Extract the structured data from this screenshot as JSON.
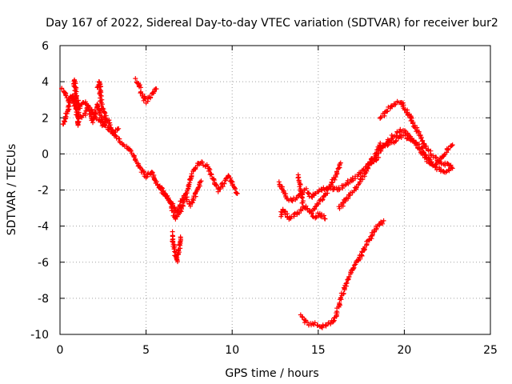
{
  "chart_data": {
    "type": "scatter",
    "title": "Day 167 of 2022, Sidereal Day-to-day VTEC variation (SDTVAR) for receiver bur2",
    "xlabel": "GPS time / hours",
    "ylabel": "SDTVAR / TECUs",
    "xlim": [
      0,
      25
    ],
    "ylim": [
      -10,
      6
    ],
    "xticks": [
      0,
      5,
      10,
      15,
      20,
      25
    ],
    "yticks": [
      -10,
      -8,
      -6,
      -4,
      -2,
      0,
      2,
      4,
      6
    ],
    "grid": true,
    "marker": "plus",
    "color": "#ff0000",
    "tracks": [
      {
        "x": [
          0.1,
          0.3,
          0.6,
          0.9,
          1.2,
          1.5,
          1.8,
          2.1,
          2.4,
          2.7,
          3.0,
          3.3,
          3.6,
          3.9,
          4.2,
          4.5,
          4.8,
          5.0
        ],
        "y": [
          3.6,
          3.3,
          2.9,
          3.1,
          2.6,
          2.9,
          2.4,
          2.0,
          1.8,
          1.5,
          1.2,
          0.9,
          0.6,
          0.4,
          0.0,
          -0.5,
          -1.0,
          -1.3
        ]
      },
      {
        "x": [
          0.2,
          0.4,
          0.7,
          1.0,
          1.3,
          1.6,
          1.9,
          2.2,
          2.5,
          2.8,
          3.1,
          3.4
        ],
        "y": [
          1.6,
          2.3,
          3.3,
          2.2,
          2.0,
          2.5,
          1.8,
          2.8,
          1.6,
          1.9,
          1.1,
          1.4
        ]
      },
      {
        "x": [
          0.8,
          0.85,
          0.9,
          0.95,
          1.0,
          1.05,
          1.1
        ],
        "y": [
          3.8,
          4.1,
          3.5,
          3.0,
          2.5,
          1.6,
          2.3
        ]
      },
      {
        "x": [
          2.2,
          2.3,
          2.35,
          2.4,
          2.5,
          2.6,
          2.7
        ],
        "y": [
          3.6,
          4.0,
          3.2,
          2.8,
          2.4,
          2.2,
          1.9
        ]
      },
      {
        "x": [
          4.4,
          4.6,
          4.8,
          5.0,
          5.2,
          5.4,
          5.6
        ],
        "y": [
          4.1,
          3.8,
          3.2,
          2.9,
          3.1,
          3.4,
          3.6
        ]
      },
      {
        "x": [
          5.0,
          5.3,
          5.6,
          5.9,
          6.2,
          6.5,
          6.8,
          7.1,
          7.4,
          7.7,
          8.0,
          8.3,
          8.6,
          8.9,
          9.2,
          9.5,
          9.8,
          10.1,
          10.3
        ],
        "y": [
          -1.3,
          -1.0,
          -1.6,
          -2.0,
          -2.4,
          -2.8,
          -3.2,
          -2.6,
          -2.0,
          -1.0,
          -0.6,
          -0.5,
          -0.7,
          -1.4,
          -2.0,
          -1.6,
          -1.2,
          -1.9,
          -2.2
        ]
      },
      {
        "x": [
          5.8,
          6.1,
          6.4,
          6.7,
          7.0,
          7.3,
          7.6,
          7.9,
          8.2
        ],
        "y": [
          -1.8,
          -2.3,
          -2.6,
          -3.6,
          -3.2,
          -2.4,
          -2.8,
          -2.2,
          -1.5
        ]
      },
      {
        "x": [
          6.5,
          6.6,
          6.7,
          6.8,
          6.9,
          7.0
        ],
        "y": [
          -4.4,
          -5.0,
          -5.6,
          -5.9,
          -5.4,
          -4.6
        ]
      },
      {
        "x": [
          12.7,
          12.9,
          13.1,
          13.4,
          13.7,
          14.0,
          14.3,
          14.6,
          14.9,
          15.2,
          15.5,
          15.8,
          16.1,
          16.4,
          16.7,
          17.0,
          17.3,
          17.6,
          17.9,
          18.2,
          18.5
        ],
        "y": [
          -1.6,
          -1.9,
          -2.3,
          -2.6,
          -2.4,
          -2.2,
          -2.0,
          -2.4,
          -2.1,
          -2.0,
          -1.9,
          -1.9,
          -2.0,
          -1.8,
          -1.6,
          -1.4,
          -1.2,
          -0.9,
          -0.6,
          -0.4,
          -0.2
        ]
      },
      {
        "x": [
          12.8,
          13.0,
          13.3,
          13.6,
          13.9,
          14.2,
          14.5,
          14.8,
          15.1,
          15.4
        ],
        "y": [
          -3.4,
          -3.1,
          -3.6,
          -3.4,
          -3.2,
          -2.9,
          -3.2,
          -3.5,
          -3.3,
          -3.6
        ]
      },
      {
        "x": [
          14.6,
          14.9,
          15.2,
          15.5,
          15.8,
          16.1,
          16.3
        ],
        "y": [
          -3.2,
          -2.8,
          -2.5,
          -2.1,
          -1.6,
          -1.0,
          -0.5
        ]
      },
      {
        "x": [
          16.2,
          16.5,
          16.8,
          17.1,
          17.4,
          17.7,
          18.0,
          18.3,
          18.6
        ],
        "y": [
          -3.0,
          -2.7,
          -2.3,
          -2.0,
          -1.6,
          -1.1,
          -0.6,
          -0.3,
          0.6
        ]
      },
      {
        "x": [
          13.8,
          13.9,
          14.0,
          14.1
        ],
        "y": [
          -1.2,
          -1.5,
          -2.0,
          -2.7
        ]
      },
      {
        "x": [
          14.0,
          14.3,
          14.6,
          14.9,
          15.2,
          15.5,
          15.8,
          16.0,
          16.2,
          16.4,
          16.6,
          16.8,
          17.0,
          17.2,
          17.4,
          17.6,
          17.8,
          18.0,
          18.2,
          18.4,
          18.6,
          18.8
        ],
        "y": [
          -9.0,
          -9.3,
          -9.5,
          -9.4,
          -9.6,
          -9.5,
          -9.3,
          -9.0,
          -8.4,
          -7.8,
          -7.3,
          -6.8,
          -6.4,
          -6.0,
          -5.8,
          -5.4,
          -5.0,
          -4.7,
          -4.4,
          -4.1,
          -3.9,
          -3.7
        ]
      },
      {
        "x": [
          18.6,
          18.9,
          19.2,
          19.5,
          19.8,
          20.1,
          20.4,
          20.7,
          21.0,
          21.3,
          21.6,
          21.9,
          22.2,
          22.5,
          22.8
        ],
        "y": [
          2.0,
          2.3,
          2.6,
          2.8,
          2.9,
          2.4,
          1.9,
          1.4,
          0.8,
          0.3,
          0.0,
          -0.3,
          -0.5,
          -0.6,
          -0.8
        ]
      },
      {
        "x": [
          18.0,
          18.3,
          18.6,
          18.9,
          19.2,
          19.5,
          19.8,
          20.1,
          20.4,
          20.7,
          21.0,
          21.3,
          21.6,
          21.9,
          22.2,
          22.5,
          22.8
        ],
        "y": [
          -0.4,
          -0.1,
          0.2,
          0.5,
          0.9,
          1.1,
          1.3,
          1.2,
          0.9,
          0.5,
          0.1,
          -0.3,
          -0.6,
          -0.5,
          -0.2,
          0.2,
          0.5
        ]
      },
      {
        "x": [
          18.5,
          18.8,
          19.1,
          19.4,
          19.7,
          20.0,
          20.3,
          20.6,
          20.9,
          21.2,
          21.5,
          21.8,
          22.1,
          22.4,
          22.7
        ],
        "y": [
          0.3,
          0.4,
          0.6,
          0.7,
          0.9,
          1.0,
          0.9,
          0.7,
          0.4,
          0.0,
          -0.4,
          -0.7,
          -0.9,
          -1.0,
          -0.8
        ]
      }
    ]
  }
}
